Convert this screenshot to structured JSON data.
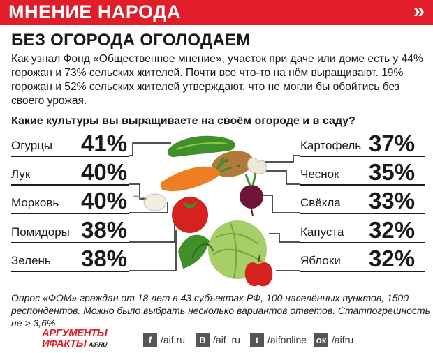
{
  "header": {
    "label": "МНЕНИЕ НАРОДА",
    "arrow": "»"
  },
  "title": "БЕЗ ОГОРОДА ОГОЛОДАЕМ",
  "lead": "Как узнал Фонд «Общественное мнение», участок при даче или доме есть у 44% горожан и 73% сельских жителей. Почти все что-то на нём выращивают. 19% горожан и 52% сельских жителей утверждают, что не могли бы обойтись без своего урожая.",
  "question": "Какие культуры вы выращиваете на своём огороде и в саду?",
  "chart_data": {
    "type": "table",
    "title": "Какие культуры вы выращиваете на своём огороде и в саду?",
    "unit": "%",
    "left": [
      {
        "label": "Огурцы",
        "value": 41,
        "display": "41%"
      },
      {
        "label": "Лук",
        "value": 40,
        "display": "40%"
      },
      {
        "label": "Морковь",
        "value": 40,
        "display": "40%"
      },
      {
        "label": "Помидоры",
        "value": 38,
        "display": "38%"
      },
      {
        "label": "Зелень",
        "value": 38,
        "display": "38%"
      }
    ],
    "right": [
      {
        "label": "Картофель",
        "value": 37,
        "display": "37%"
      },
      {
        "label": "Чеснок",
        "value": 35,
        "display": "35%"
      },
      {
        "label": "Свёкла",
        "value": 33,
        "display": "33%"
      },
      {
        "label": "Капуста",
        "value": 32,
        "display": "32%"
      },
      {
        "label": "Яблоки",
        "value": 32,
        "display": "32%"
      }
    ]
  },
  "footnote": "Опрос «ФОМ» граждан от 18 лет в 43 субъектах РФ, 100 населённых пунктов, 1500 респондентов. Можно было выбрать несколько вариантов ответов. Статпогрешность не > 3,6%",
  "footer": {
    "logo_line1": "АРГУМЕНТЫ",
    "logo_line2": "ИФАКТЫ",
    "logo_domain": "AIF.RU",
    "social": [
      {
        "icon": "facebook-icon",
        "glyph": "f",
        "handle": "/aif.ru"
      },
      {
        "icon": "vk-icon",
        "glyph": "В",
        "handle": "/aif_ru"
      },
      {
        "icon": "twitter-icon",
        "glyph": "t",
        "handle": "/aifonline"
      },
      {
        "icon": "odnoklassniki-icon",
        "glyph": "ок",
        "handle": "/aifru"
      }
    ]
  },
  "colors": {
    "accent": "#e11d2a",
    "text": "#1a1a1a"
  }
}
